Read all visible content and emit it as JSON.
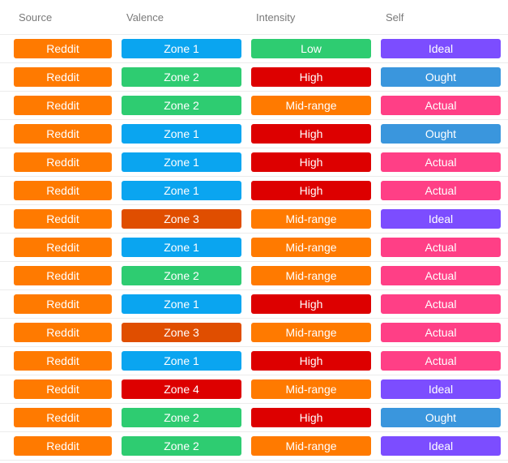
{
  "header": {
    "columns": [
      "Source",
      "Valence",
      "Intensity",
      "Self"
    ]
  },
  "colors": {
    "Reddit": "#ff7a00",
    "Zone 1": "#0aa5f0",
    "Zone 2": "#2ecc71",
    "Zone 3": "#e04e00",
    "Zone 4": "#dd0000",
    "Low": "#2ecc71",
    "High": "#dd0000",
    "Mid-range": "#ff7a00",
    "Ideal": "#7c4dff",
    "Ought": "#3a96dd",
    "Actual": "#ff3f86"
  },
  "rows": [
    [
      "Reddit",
      "Zone 1",
      "Low",
      "Ideal"
    ],
    [
      "Reddit",
      "Zone 2",
      "High",
      "Ought"
    ],
    [
      "Reddit",
      "Zone 2",
      "Mid-range",
      "Actual"
    ],
    [
      "Reddit",
      "Zone 1",
      "High",
      "Ought"
    ],
    [
      "Reddit",
      "Zone 1",
      "High",
      "Actual"
    ],
    [
      "Reddit",
      "Zone 1",
      "High",
      "Actual"
    ],
    [
      "Reddit",
      "Zone 3",
      "Mid-range",
      "Ideal"
    ],
    [
      "Reddit",
      "Zone 1",
      "Mid-range",
      "Actual"
    ],
    [
      "Reddit",
      "Zone 2",
      "Mid-range",
      "Actual"
    ],
    [
      "Reddit",
      "Zone 1",
      "High",
      "Actual"
    ],
    [
      "Reddit",
      "Zone 3",
      "Mid-range",
      "Actual"
    ],
    [
      "Reddit",
      "Zone 1",
      "High",
      "Actual"
    ],
    [
      "Reddit",
      "Zone 4",
      "Mid-range",
      "Ideal"
    ],
    [
      "Reddit",
      "Zone 2",
      "High",
      "Ought"
    ],
    [
      "Reddit",
      "Zone 2",
      "Mid-range",
      "Ideal"
    ]
  ]
}
